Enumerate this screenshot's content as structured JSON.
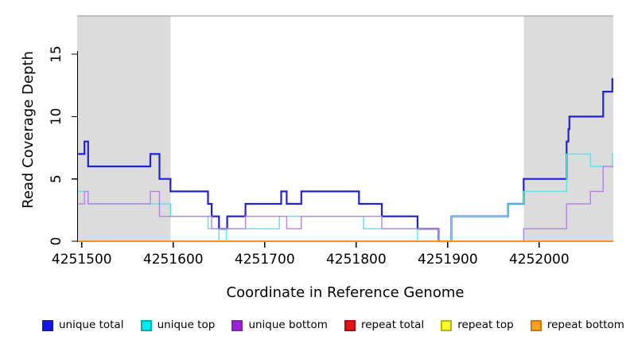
{
  "ui": {
    "xlabel": "Coordinate in Reference Genome",
    "ylabel": "Read Coverage Depth",
    "legend": [
      {
        "label": "unique total",
        "fill": "#1414E6",
        "border": "#1A1AA8"
      },
      {
        "label": "unique top",
        "fill": "#00EEEE",
        "border": "#00A8B4"
      },
      {
        "label": "unique bottom",
        "fill": "#A21EDC",
        "border": "#7A2AA0"
      },
      {
        "label": "repeat total",
        "fill": "#E61414",
        "border": "#A01010"
      },
      {
        "label": "repeat top",
        "fill": "#FCFC28",
        "border": "#B4B410"
      },
      {
        "label": "repeat bottom",
        "fill": "#FFA01E",
        "border": "#C87810"
      }
    ]
  },
  "chart_data": {
    "type": "line",
    "step_mode": "post",
    "title": "",
    "xlabel": "Coordinate in Reference Genome",
    "ylabel": "Read Coverage Depth",
    "xlim": [
      4251495,
      4252081
    ],
    "ylim": [
      0,
      18.07
    ],
    "x_ticks": [
      4251500,
      4251600,
      4251700,
      4251800,
      4251900,
      4252000
    ],
    "y_ticks": [
      0,
      5,
      10,
      15
    ],
    "grid": false,
    "legend_position": "bottom",
    "shade_color": "#DCDCDC",
    "shaded_regions": [
      [
        4251495,
        4251597
      ],
      [
        4251983,
        4252081
      ]
    ],
    "box_top_color": "#8F8F8F",
    "axis_color": "#000000",
    "series": [
      {
        "name": "unique total",
        "color": "#2121CE",
        "width": 2.2,
        "steps": [
          [
            4251496,
            7
          ],
          [
            4251503,
            8
          ],
          [
            4251507,
            6
          ],
          [
            4251575,
            7
          ],
          [
            4251585,
            5
          ],
          [
            4251597,
            4
          ],
          [
            4251638,
            3
          ],
          [
            4251642,
            2
          ],
          [
            4251650,
            1
          ],
          [
            4251659,
            2
          ],
          [
            4251679,
            3
          ],
          [
            4251718,
            4
          ],
          [
            4251724,
            3
          ],
          [
            4251740,
            4
          ],
          [
            4251803,
            3
          ],
          [
            4251828,
            2
          ],
          [
            4251867,
            1
          ],
          [
            4251890,
            0
          ],
          [
            4251904,
            2
          ],
          [
            4251966,
            3
          ],
          [
            4251983,
            5
          ],
          [
            4252030,
            8
          ],
          [
            4252032,
            9
          ],
          [
            4252033,
            10
          ],
          [
            4252070,
            12
          ],
          [
            4252080,
            13
          ]
        ]
      },
      {
        "name": "unique top",
        "color": "#5CE2E8",
        "width": 1.4,
        "steps": [
          [
            4251496,
            4
          ],
          [
            4251507,
            3
          ],
          [
            4251597,
            2
          ],
          [
            4251638,
            1
          ],
          [
            4251650,
            0
          ],
          [
            4251658,
            1
          ],
          [
            4251716,
            2
          ],
          [
            4251808,
            1
          ],
          [
            4251867,
            0
          ],
          [
            4251904,
            2
          ],
          [
            4251966,
            3
          ],
          [
            4251983,
            4
          ],
          [
            4252030,
            7
          ],
          [
            4252056,
            6
          ],
          [
            4252080,
            7
          ]
        ]
      },
      {
        "name": "unique bottom",
        "color": "#B583DF",
        "width": 1.4,
        "steps": [
          [
            4251496,
            3
          ],
          [
            4251503,
            4
          ],
          [
            4251507,
            3
          ],
          [
            4251575,
            4
          ],
          [
            4251585,
            2
          ],
          [
            4251642,
            1
          ],
          [
            4251679,
            2
          ],
          [
            4251724,
            1
          ],
          [
            4251740,
            2
          ],
          [
            4251828,
            1
          ],
          [
            4251890,
            0
          ],
          [
            4251983,
            1
          ],
          [
            4252030,
            3
          ],
          [
            4252056,
            4
          ],
          [
            4252070,
            6
          ]
        ]
      },
      {
        "name": "repeat total",
        "color": "#DE1010",
        "width": 1.2,
        "steps": [
          [
            4251496,
            0
          ]
        ]
      },
      {
        "name": "repeat top",
        "color": "#F8F820",
        "width": 1.2,
        "steps": [
          [
            4251496,
            0
          ]
        ]
      },
      {
        "name": "repeat bottom",
        "color": "#FF8D20",
        "width": 2,
        "steps": [
          [
            4251496,
            0
          ]
        ]
      }
    ]
  }
}
